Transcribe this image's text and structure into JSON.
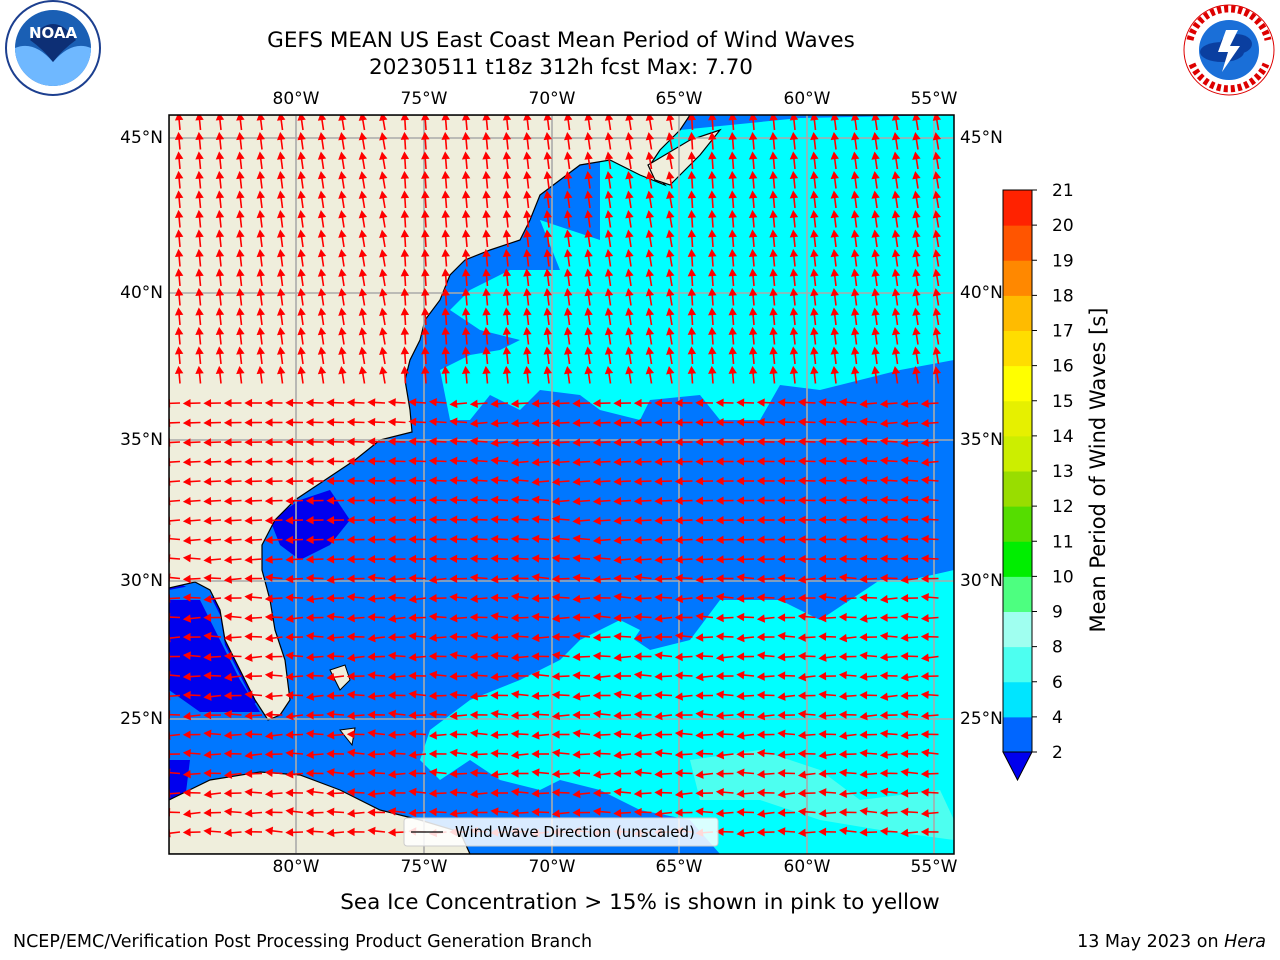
{
  "title_line1": "GEFS MEAN US East Coast Mean Period of Wind Waves",
  "title_line2": "20230511 t18z 312h fcst   Max: 7.70",
  "subtitle": "Sea Ice Concentration > 15% is shown in pink to yellow",
  "footer_left": "NCEP/EMC/Verification Post Processing Product Generation Branch",
  "footer_right_date": "13 May 2023 on",
  "footer_right_host": "Hera",
  "legend_label": "Wind Wave Direction (unscaled)",
  "colorbar": {
    "label": "Mean Period of Wind Waves [s]",
    "ticks": [
      "2",
      "4",
      "6",
      "8",
      "9",
      "10",
      "11",
      "12",
      "13",
      "14",
      "15",
      "16",
      "17",
      "18",
      "19",
      "20",
      "21"
    ],
    "colors": [
      "#0066ff",
      "#00e5ff",
      "#4dfff0",
      "#a0fff0",
      "#4dff80",
      "#00ee00",
      "#55dd00",
      "#99dd00",
      "#ccee00",
      "#e6f000",
      "#ffff00",
      "#ffdd00",
      "#ffbb00",
      "#ff8800",
      "#ff5500",
      "#ff2200",
      "#ff0000"
    ],
    "extend_color": "#0000ee"
  },
  "x_ticks": [
    "80°W",
    "75°W",
    "70°W",
    "65°W",
    "60°W",
    "55°W"
  ],
  "y_ticks": [
    "45°N",
    "40°N",
    "35°N",
    "30°N",
    "25°N"
  ],
  "logos": {
    "left": {
      "text": "NOAA",
      "icon": "noaa-logo-icon"
    },
    "right": {
      "text": "NATIONAL WEATHER SERVICE",
      "icon": "nws-logo-icon"
    }
  },
  "colors": {
    "land": "#efeedc",
    "ocean_low": "#0077ff",
    "ocean_mid": "#00ffff",
    "ocean_deep": "#0000ee",
    "arrow": "#ff0000",
    "grid": "#aaaaaa"
  }
}
